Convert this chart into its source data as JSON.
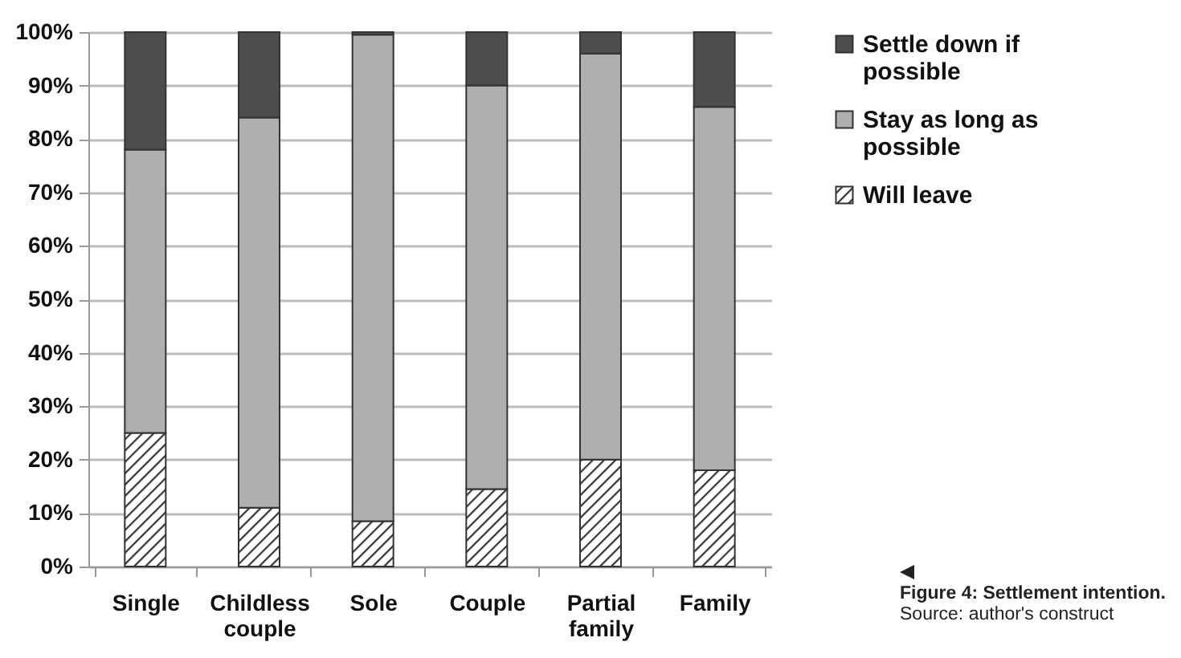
{
  "chart_data": {
    "type": "bar",
    "stacked": true,
    "categories": [
      "Single",
      "Childless couple",
      "Sole",
      "Couple",
      "Partial family",
      "Family"
    ],
    "series": [
      {
        "name": "Will leave",
        "color": "#333333",
        "values": [
          25,
          11,
          8.5,
          14.5,
          20,
          18
        ]
      },
      {
        "name": "Stay as long as possible",
        "color": "#afafaf",
        "values": [
          53,
          73,
          91,
          75.5,
          76,
          68
        ]
      },
      {
        "name": "Settle down if possible",
        "color": "#4d4d4d",
        "values": [
          22,
          16,
          0.5,
          10,
          4,
          14
        ]
      }
    ],
    "ylim": [
      0,
      100
    ],
    "yticks": [
      {
        "value": 0,
        "label": "0%"
      },
      {
        "value": 10,
        "label": "10%"
      },
      {
        "value": 20,
        "label": "20%"
      },
      {
        "value": 30,
        "label": "30%"
      },
      {
        "value": 40,
        "label": "40%"
      },
      {
        "value": 50,
        "label": "50%"
      },
      {
        "value": 60,
        "label": "60%"
      },
      {
        "value": 70,
        "label": "70%"
      },
      {
        "value": 80,
        "label": "80%"
      },
      {
        "value": 90,
        "label": "90%"
      },
      {
        "value": 100,
        "label": "100%"
      }
    ],
    "grid": "y",
    "legend": "right",
    "annotations": [
      "Figure 4: Settlement intention.",
      "Source: author's construct"
    ]
  }
}
